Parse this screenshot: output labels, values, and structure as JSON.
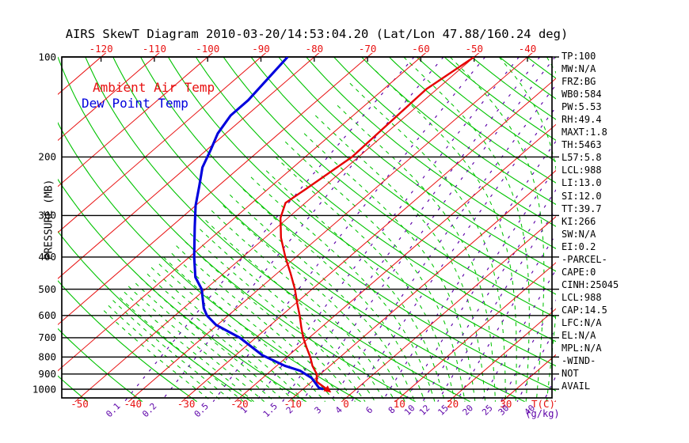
{
  "title": "AIRS SkewT Diagram 2010-03-20/14:53:04.20 (Lat/Lon 47.88/160.24 deg)",
  "colors": {
    "isotherm": "#e81010",
    "dry_adiabat": "#00c300",
    "moist_adiabat": "#00c300",
    "mixing_ratio": "#5c00a8",
    "temp_profile": "#e60000",
    "dewpoint_profile": "#0000dd",
    "frame": "#000000"
  },
  "chart_data": {
    "type": "line",
    "variant": "skew-t-log-p",
    "title": "AIRS SkewT Diagram 2010-03-20/14:53:04.20 (Lat/Lon 47.88/160.24 deg)",
    "xlabel": "T(C)",
    "ylabel": "PRESSURE (MB)",
    "mixing_unit": "(g/kg)",
    "pressure_ticks_mb": [
      100,
      200,
      300,
      400,
      500,
      600,
      700,
      800,
      900,
      1000
    ],
    "pressure_range_mb": [
      100,
      1050
    ],
    "x_top_ticks_c": [
      -120,
      -110,
      -100,
      -90,
      -80,
      -70,
      -60,
      -50,
      -40
    ],
    "x_bottom_ticks_c": [
      -50,
      -40,
      -30,
      -20,
      -10,
      0,
      10,
      20,
      30
    ],
    "isotherm_step_c": 10,
    "dry_adiabats_theta_k": {
      "start": 210,
      "end": 460,
      "step": 10
    },
    "moist_adiabats_thetaw_c": {
      "start": -30,
      "end": 40,
      "step": 2
    },
    "mixing_ratio_lines_gkg": [
      0.1,
      0.2,
      0.5,
      1,
      1.5,
      2,
      3,
      4,
      6,
      8,
      10,
      12,
      15,
      20,
      25,
      30,
      40
    ],
    "grid": true,
    "legend_position": "top-left-inside",
    "series": [
      {
        "name": "Ambient Air Temp",
        "color": "#e60000",
        "points_p_t": [
          [
            100,
            -50
          ],
          [
            125,
            -52
          ],
          [
            150,
            -51.7
          ],
          [
            200,
            -51.2
          ],
          [
            250,
            -52.9
          ],
          [
            275,
            -53.7
          ],
          [
            305,
            -51.4
          ],
          [
            350,
            -47
          ],
          [
            400,
            -42
          ],
          [
            450,
            -37.3
          ],
          [
            500,
            -33.2
          ],
          [
            550,
            -29.8
          ],
          [
            600,
            -26.6
          ],
          [
            650,
            -23.8
          ],
          [
            700,
            -21.1
          ],
          [
            750,
            -18.3
          ],
          [
            800,
            -15.6
          ],
          [
            850,
            -13.3
          ],
          [
            900,
            -10.7
          ],
          [
            950,
            -9
          ],
          [
            1000,
            -5.5
          ]
        ]
      },
      {
        "name": "Dew Point Temp",
        "color": "#0000dd",
        "points_p_t": [
          [
            100,
            -85
          ],
          [
            135,
            -83
          ],
          [
            150,
            -83
          ],
          [
            170,
            -81.5
          ],
          [
            190,
            -79.3
          ],
          [
            215,
            -77
          ],
          [
            245,
            -73.5
          ],
          [
            280,
            -70
          ],
          [
            325,
            -65.5
          ],
          [
            400,
            -59.1
          ],
          [
            460,
            -54.5
          ],
          [
            500,
            -50.7
          ],
          [
            570,
            -46.2
          ],
          [
            600,
            -44
          ],
          [
            640,
            -40.3
          ],
          [
            700,
            -33
          ],
          [
            790,
            -25
          ],
          [
            850,
            -18.5
          ],
          [
            880,
            -14.5
          ],
          [
            925,
            -10.8
          ],
          [
            990,
            -7.3
          ],
          [
            1000,
            -6.2
          ]
        ]
      }
    ],
    "stats": [
      "TP:100",
      "MW:N/A",
      "FRZ:BG",
      "WB0:584",
      "PW:5.53",
      "RH:49.4",
      "MAXT:1.8",
      "TH:5463",
      "L57:5.8",
      "LCL:988",
      "LI:13.0",
      "SI:12.0",
      "TT:39.7",
      "KI:266",
      "SW:N/A",
      "EI:0.2",
      "-PARCEL-",
      "CAPE:0",
      "CINH:25045",
      "LCL:988",
      "CAP:14.5",
      "LFC:N/A",
      "EL:N/A",
      "MPL:N/A",
      "-WIND-",
      "NOT",
      "AVAIL"
    ]
  }
}
